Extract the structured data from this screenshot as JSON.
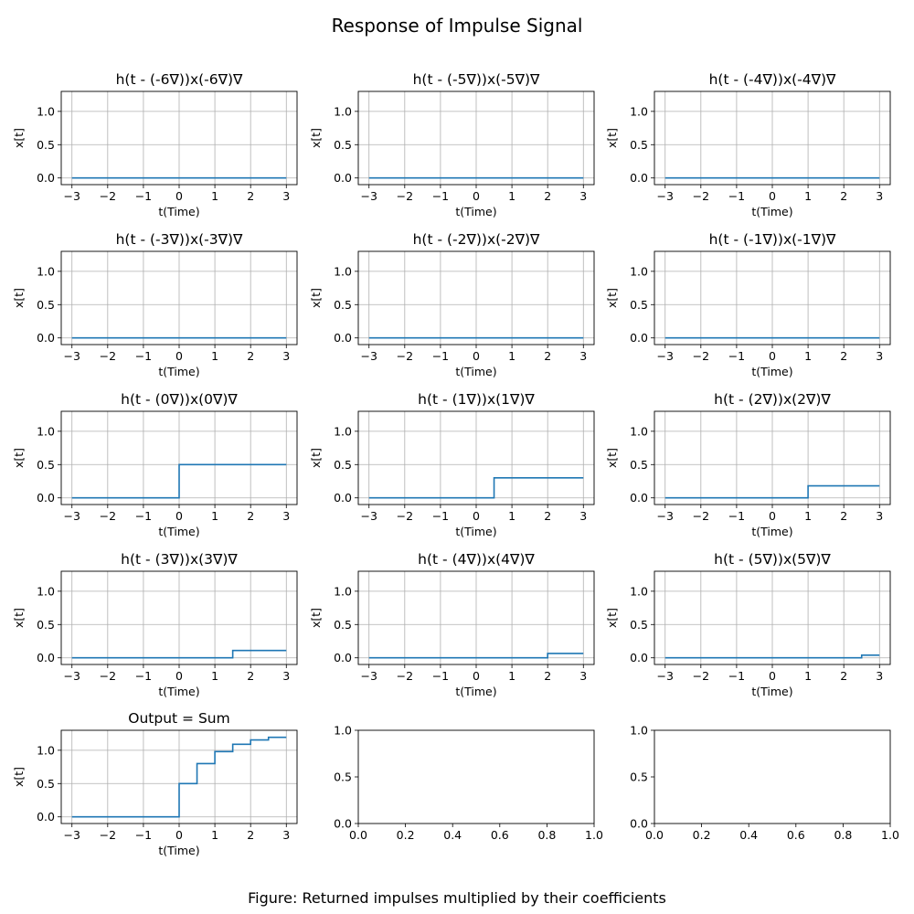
{
  "figure": {
    "title": "Response of Impulse Signal",
    "caption": "Figure: Returned impulses multiplied by their coefficients"
  },
  "colors": {
    "line": "#1f77b4",
    "grid": "#b0b0b0",
    "axes": "#000000"
  },
  "chart_data": [
    {
      "type": "line",
      "title": "h(t - (-6∇))x(-6∇)∇",
      "xlabel": "t(Time)",
      "ylabel": "x[t]",
      "xlim": [
        -3.3,
        3.3
      ],
      "ylim": [
        -0.1,
        1.3
      ],
      "xticks": [
        -3,
        -2,
        -1,
        0,
        1,
        2,
        3
      ],
      "yticks": [
        0.0,
        0.5,
        1.0
      ],
      "grid": true,
      "series": [
        {
          "x": [
            -3,
            3
          ],
          "y": [
            0,
            0
          ]
        }
      ]
    },
    {
      "type": "line",
      "title": "h(t - (-5∇))x(-5∇)∇",
      "xlabel": "t(Time)",
      "ylabel": "x[t]",
      "xlim": [
        -3.3,
        3.3
      ],
      "ylim": [
        -0.1,
        1.3
      ],
      "xticks": [
        -3,
        -2,
        -1,
        0,
        1,
        2,
        3
      ],
      "yticks": [
        0.0,
        0.5,
        1.0
      ],
      "grid": true,
      "series": [
        {
          "x": [
            -3,
            3
          ],
          "y": [
            0,
            0
          ]
        }
      ]
    },
    {
      "type": "line",
      "title": "h(t - (-4∇))x(-4∇)∇",
      "xlabel": "t(Time)",
      "ylabel": "x[t]",
      "xlim": [
        -3.3,
        3.3
      ],
      "ylim": [
        -0.1,
        1.3
      ],
      "xticks": [
        -3,
        -2,
        -1,
        0,
        1,
        2,
        3
      ],
      "yticks": [
        0.0,
        0.5,
        1.0
      ],
      "grid": true,
      "series": [
        {
          "x": [
            -3,
            3
          ],
          "y": [
            0,
            0
          ]
        }
      ]
    },
    {
      "type": "line",
      "title": "h(t - (-3∇))x(-3∇)∇",
      "xlabel": "t(Time)",
      "ylabel": "x[t]",
      "xlim": [
        -3.3,
        3.3
      ],
      "ylim": [
        -0.1,
        1.3
      ],
      "xticks": [
        -3,
        -2,
        -1,
        0,
        1,
        2,
        3
      ],
      "yticks": [
        0.0,
        0.5,
        1.0
      ],
      "grid": true,
      "series": [
        {
          "x": [
            -3,
            3
          ],
          "y": [
            0,
            0
          ]
        }
      ]
    },
    {
      "type": "line",
      "title": "h(t - (-2∇))x(-2∇)∇",
      "xlabel": "t(Time)",
      "ylabel": "x[t]",
      "xlim": [
        -3.3,
        3.3
      ],
      "ylim": [
        -0.1,
        1.3
      ],
      "xticks": [
        -3,
        -2,
        -1,
        0,
        1,
        2,
        3
      ],
      "yticks": [
        0.0,
        0.5,
        1.0
      ],
      "grid": true,
      "series": [
        {
          "x": [
            -3,
            3
          ],
          "y": [
            0,
            0
          ]
        }
      ]
    },
    {
      "type": "line",
      "title": "h(t - (-1∇))x(-1∇)∇",
      "xlabel": "t(Time)",
      "ylabel": "x[t]",
      "xlim": [
        -3.3,
        3.3
      ],
      "ylim": [
        -0.1,
        1.3
      ],
      "xticks": [
        -3,
        -2,
        -1,
        0,
        1,
        2,
        3
      ],
      "yticks": [
        0.0,
        0.5,
        1.0
      ],
      "grid": true,
      "series": [
        {
          "x": [
            -3,
            3
          ],
          "y": [
            0,
            0
          ]
        }
      ]
    },
    {
      "type": "line",
      "title": "h(t - (0∇))x(0∇)∇",
      "xlabel": "t(Time)",
      "ylabel": "x[t]",
      "xlim": [
        -3.3,
        3.3
      ],
      "ylim": [
        -0.1,
        1.3
      ],
      "xticks": [
        -3,
        -2,
        -1,
        0,
        1,
        2,
        3
      ],
      "yticks": [
        0.0,
        0.5,
        1.0
      ],
      "grid": true,
      "series": [
        {
          "x": [
            -3,
            0,
            0,
            3
          ],
          "y": [
            0,
            0,
            0.5,
            0.5
          ]
        }
      ]
    },
    {
      "type": "line",
      "title": "h(t - (1∇))x(1∇)∇",
      "xlabel": "t(Time)",
      "ylabel": "x[t]",
      "xlim": [
        -3.3,
        3.3
      ],
      "ylim": [
        -0.1,
        1.3
      ],
      "xticks": [
        -3,
        -2,
        -1,
        0,
        1,
        2,
        3
      ],
      "yticks": [
        0.0,
        0.5,
        1.0
      ],
      "grid": true,
      "series": [
        {
          "x": [
            -3,
            0.5,
            0.5,
            3
          ],
          "y": [
            0,
            0,
            0.3,
            0.3
          ]
        }
      ]
    },
    {
      "type": "line",
      "title": "h(t - (2∇))x(2∇)∇",
      "xlabel": "t(Time)",
      "ylabel": "x[t]",
      "xlim": [
        -3.3,
        3.3
      ],
      "ylim": [
        -0.1,
        1.3
      ],
      "xticks": [
        -3,
        -2,
        -1,
        0,
        1,
        2,
        3
      ],
      "yticks": [
        0.0,
        0.5,
        1.0
      ],
      "grid": true,
      "series": [
        {
          "x": [
            -3,
            1,
            1,
            3
          ],
          "y": [
            0,
            0,
            0.18,
            0.18
          ]
        }
      ]
    },
    {
      "type": "line",
      "title": "h(t - (3∇))x(3∇)∇",
      "xlabel": "t(Time)",
      "ylabel": "x[t]",
      "xlim": [
        -3.3,
        3.3
      ],
      "ylim": [
        -0.1,
        1.3
      ],
      "xticks": [
        -3,
        -2,
        -1,
        0,
        1,
        2,
        3
      ],
      "yticks": [
        0.0,
        0.5,
        1.0
      ],
      "grid": true,
      "series": [
        {
          "x": [
            -3,
            1.5,
            1.5,
            3
          ],
          "y": [
            0,
            0,
            0.11,
            0.11
          ]
        }
      ]
    },
    {
      "type": "line",
      "title": "h(t - (4∇))x(4∇)∇",
      "xlabel": "t(Time)",
      "ylabel": "x[t]",
      "xlim": [
        -3.3,
        3.3
      ],
      "ylim": [
        -0.1,
        1.3
      ],
      "xticks": [
        -3,
        -2,
        -1,
        0,
        1,
        2,
        3
      ],
      "yticks": [
        0.0,
        0.5,
        1.0
      ],
      "grid": true,
      "series": [
        {
          "x": [
            -3,
            2,
            2,
            3
          ],
          "y": [
            0,
            0,
            0.065,
            0.065
          ]
        }
      ]
    },
    {
      "type": "line",
      "title": "h(t - (5∇))x(5∇)∇",
      "xlabel": "t(Time)",
      "ylabel": "x[t]",
      "xlim": [
        -3.3,
        3.3
      ],
      "ylim": [
        -0.1,
        1.3
      ],
      "xticks": [
        -3,
        -2,
        -1,
        0,
        1,
        2,
        3
      ],
      "yticks": [
        0.0,
        0.5,
        1.0
      ],
      "grid": true,
      "series": [
        {
          "x": [
            -3,
            2.5,
            2.5,
            3
          ],
          "y": [
            0,
            0,
            0.04,
            0.04
          ]
        }
      ]
    },
    {
      "type": "line",
      "title": "Output = Sum",
      "xlabel": "t(Time)",
      "ylabel": "x[t]",
      "xlim": [
        -3.3,
        3.3
      ],
      "ylim": [
        -0.1,
        1.3
      ],
      "xticks": [
        -3,
        -2,
        -1,
        0,
        1,
        2,
        3
      ],
      "yticks": [
        0.0,
        0.5,
        1.0
      ],
      "grid": true,
      "series": [
        {
          "x": [
            -3,
            0,
            0,
            0.5,
            0.5,
            1,
            1,
            1.5,
            1.5,
            2,
            2,
            2.5,
            2.5,
            3
          ],
          "y": [
            0,
            0,
            0.5,
            0.5,
            0.8,
            0.8,
            0.98,
            0.98,
            1.09,
            1.09,
            1.155,
            1.155,
            1.195,
            1.195
          ]
        }
      ]
    },
    {
      "type": "line",
      "title": "",
      "xlabel": "",
      "ylabel": "",
      "xlim": [
        0,
        1
      ],
      "ylim": [
        0,
        1
      ],
      "xticks": [
        0.0,
        0.2,
        0.4,
        0.6,
        0.8,
        1.0
      ],
      "yticks": [
        0.0,
        0.5,
        1.0
      ],
      "grid": false,
      "series": []
    },
    {
      "type": "line",
      "title": "",
      "xlabel": "",
      "ylabel": "",
      "xlim": [
        0,
        1
      ],
      "ylim": [
        0,
        1
      ],
      "xticks": [
        0.0,
        0.2,
        0.4,
        0.6,
        0.8,
        1.0
      ],
      "yticks": [
        0.0,
        0.5,
        1.0
      ],
      "grid": false,
      "series": []
    }
  ]
}
